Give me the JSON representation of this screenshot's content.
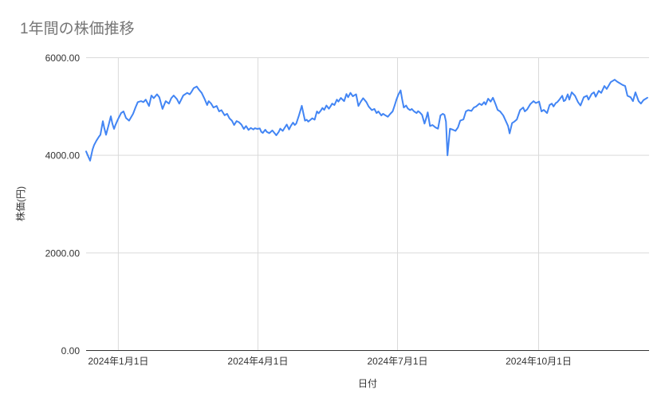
{
  "chart_data": {
    "type": "line",
    "title": "1年間の株価推移",
    "xlabel": "日付",
    "ylabel": "株価(円)",
    "ylim": [
      0,
      6000
    ],
    "xlim_days": [
      0,
      367
    ],
    "grid": true,
    "legend": "none",
    "line_color": "#4285f4",
    "title_color": "#757575",
    "axis_text_color": "#333333",
    "grid_color": "#dadada",
    "baseline_color": "#333333",
    "background_color": "#ffffff",
    "y_ticks": [
      {
        "value": 0,
        "label": "0.00"
      },
      {
        "value": 2000,
        "label": "2000.00"
      },
      {
        "value": 4000,
        "label": "4000.00"
      },
      {
        "value": 6000,
        "label": "6000.00"
      }
    ],
    "x_ticks": [
      {
        "day": 21,
        "label": "2024年1月1日"
      },
      {
        "day": 112,
        "label": "2024年4月1日"
      },
      {
        "day": 203,
        "label": "2024年7月1日"
      },
      {
        "day": 295,
        "label": "2024年10月1日"
      }
    ],
    "series": [
      {
        "name": "株価",
        "points": [
          [
            0,
            4080
          ],
          [
            1.6,
            3960
          ],
          [
            2.6,
            3890
          ],
          [
            4.2,
            4120
          ],
          [
            5.2,
            4210
          ],
          [
            6.7,
            4300
          ],
          [
            8.3,
            4380
          ],
          [
            9.3,
            4420
          ],
          [
            10.9,
            4700
          ],
          [
            11.9,
            4550
          ],
          [
            13,
            4420
          ],
          [
            14.5,
            4600
          ],
          [
            16.1,
            4800
          ],
          [
            17.1,
            4650
          ],
          [
            18.2,
            4540
          ],
          [
            19.2,
            4625
          ],
          [
            20.8,
            4740
          ],
          [
            22.8,
            4865
          ],
          [
            24.4,
            4900
          ],
          [
            26,
            4765
          ],
          [
            28,
            4710
          ],
          [
            30.6,
            4850
          ],
          [
            32.2,
            4980
          ],
          [
            33.7,
            5090
          ],
          [
            35.8,
            5110
          ],
          [
            37.4,
            5090
          ],
          [
            38.9,
            5140
          ],
          [
            41,
            5010
          ],
          [
            42.6,
            5225
          ],
          [
            44.1,
            5170
          ],
          [
            46.2,
            5250
          ],
          [
            47.7,
            5190
          ],
          [
            49.8,
            4950
          ],
          [
            51.9,
            5110
          ],
          [
            54,
            5060
          ],
          [
            55.5,
            5170
          ],
          [
            57.1,
            5225
          ],
          [
            59.2,
            5150
          ],
          [
            60.7,
            5060
          ],
          [
            63.3,
            5225
          ],
          [
            65.9,
            5280
          ],
          [
            67.5,
            5250
          ],
          [
            68.5,
            5290
          ],
          [
            70.1,
            5375
          ],
          [
            72.1,
            5410
          ],
          [
            73.7,
            5340
          ],
          [
            75.3,
            5280
          ],
          [
            77.3,
            5150
          ],
          [
            78.9,
            5030
          ],
          [
            79.9,
            5110
          ],
          [
            81.5,
            5060
          ],
          [
            83,
            4980
          ],
          [
            85.1,
            5010
          ],
          [
            86.7,
            4900
          ],
          [
            88.2,
            4925
          ],
          [
            90.3,
            4820
          ],
          [
            91.9,
            4850
          ],
          [
            93.4,
            4760
          ],
          [
            95,
            4710
          ],
          [
            96.5,
            4620
          ],
          [
            98.1,
            4700
          ],
          [
            99.6,
            4680
          ],
          [
            101.2,
            4630
          ],
          [
            102.8,
            4540
          ],
          [
            104.3,
            4600
          ],
          [
            105.9,
            4520
          ],
          [
            107.4,
            4560
          ],
          [
            109,
            4530
          ],
          [
            110,
            4555
          ],
          [
            111.6,
            4540
          ],
          [
            113.2,
            4550
          ],
          [
            114.2,
            4480
          ],
          [
            115.2,
            4460
          ],
          [
            116.8,
            4525
          ],
          [
            117.8,
            4480
          ],
          [
            119.4,
            4455
          ],
          [
            120.4,
            4480
          ],
          [
            121.4,
            4510
          ],
          [
            123,
            4450
          ],
          [
            124,
            4410
          ],
          [
            125.6,
            4480
          ],
          [
            126.6,
            4545
          ],
          [
            128.2,
            4500
          ],
          [
            129.2,
            4550
          ],
          [
            130.8,
            4630
          ],
          [
            132.3,
            4530
          ],
          [
            133.4,
            4600
          ],
          [
            134.9,
            4670
          ],
          [
            136,
            4620
          ],
          [
            137,
            4650
          ],
          [
            138.6,
            4800
          ],
          [
            140.6,
            5015
          ],
          [
            141.7,
            4850
          ],
          [
            142.7,
            4710
          ],
          [
            143.8,
            4730
          ],
          [
            144.8,
            4690
          ],
          [
            146.4,
            4730
          ],
          [
            147.4,
            4760
          ],
          [
            149,
            4730
          ],
          [
            150.5,
            4900
          ],
          [
            151.6,
            4860
          ],
          [
            153.1,
            4920
          ],
          [
            154.1,
            4970
          ],
          [
            155.2,
            4930
          ],
          [
            156.7,
            5020
          ],
          [
            158.3,
            4955
          ],
          [
            159.3,
            5000
          ],
          [
            160.4,
            5060
          ],
          [
            161.9,
            5030
          ],
          [
            163.5,
            5140
          ],
          [
            164.5,
            5100
          ],
          [
            166.1,
            5175
          ],
          [
            168.2,
            5110
          ],
          [
            169.7,
            5255
          ],
          [
            170.8,
            5190
          ],
          [
            172.3,
            5280
          ],
          [
            173.9,
            5210
          ],
          [
            174.9,
            5230
          ],
          [
            176,
            5250
          ],
          [
            177.5,
            5010
          ],
          [
            179.1,
            5100
          ],
          [
            180.6,
            5170
          ],
          [
            181.7,
            5130
          ],
          [
            182.7,
            5090
          ],
          [
            184.2,
            5000
          ],
          [
            186.3,
            4925
          ],
          [
            187.9,
            4950
          ],
          [
            189.4,
            4865
          ],
          [
            190.5,
            4900
          ],
          [
            192.5,
            4816
          ],
          [
            193.6,
            4850
          ],
          [
            195.1,
            4820
          ],
          [
            196.7,
            4790
          ],
          [
            198.3,
            4850
          ],
          [
            199.8,
            4900
          ],
          [
            200.9,
            5000
          ],
          [
            202.4,
            5150
          ],
          [
            203.5,
            5240
          ],
          [
            205,
            5330
          ],
          [
            206,
            5150
          ],
          [
            207.1,
            4980
          ],
          [
            208.6,
            5020
          ],
          [
            209.7,
            4960
          ],
          [
            211.2,
            4925
          ],
          [
            212.3,
            4950
          ],
          [
            213.8,
            4900
          ],
          [
            215.4,
            4865
          ],
          [
            216.4,
            4905
          ],
          [
            217.5,
            4880
          ],
          [
            219,
            4830
          ],
          [
            220.6,
            4650
          ],
          [
            221.6,
            4750
          ],
          [
            222.7,
            4880
          ],
          [
            224.2,
            4600
          ],
          [
            225.8,
            4620
          ],
          [
            227.8,
            4570
          ],
          [
            229.4,
            4545
          ],
          [
            231,
            4816
          ],
          [
            232.5,
            4850
          ],
          [
            233.6,
            4830
          ],
          [
            234.6,
            4690
          ],
          [
            235.6,
            4000
          ],
          [
            237.2,
            4545
          ],
          [
            238.7,
            4530
          ],
          [
            240.8,
            4500
          ],
          [
            242.4,
            4570
          ],
          [
            243.9,
            4710
          ],
          [
            246,
            4735
          ],
          [
            247.6,
            4900
          ],
          [
            249.1,
            4925
          ],
          [
            251.2,
            4910
          ],
          [
            252.8,
            4980
          ],
          [
            254.3,
            5000
          ],
          [
            256.4,
            5060
          ],
          [
            257.9,
            5030
          ],
          [
            259.5,
            5090
          ],
          [
            260.5,
            5040
          ],
          [
            262.1,
            5160
          ],
          [
            263.7,
            5100
          ],
          [
            265.2,
            5180
          ],
          [
            266.8,
            5060
          ],
          [
            268.3,
            4930
          ],
          [
            269.9,
            4900
          ],
          [
            272,
            4815
          ],
          [
            273.5,
            4710
          ],
          [
            275.1,
            4600
          ],
          [
            276.1,
            4450
          ],
          [
            277.7,
            4660
          ],
          [
            279.2,
            4690
          ],
          [
            280.8,
            4735
          ],
          [
            282.9,
            4925
          ],
          [
            284.9,
            4980
          ],
          [
            286,
            4900
          ],
          [
            287.5,
            4940
          ],
          [
            289.6,
            5050
          ],
          [
            291.7,
            5110
          ],
          [
            293.2,
            5070
          ],
          [
            295.3,
            5100
          ],
          [
            296.9,
            4900
          ],
          [
            298.4,
            4930
          ],
          [
            300.5,
            4865
          ],
          [
            302.1,
            5030
          ],
          [
            303.6,
            5060
          ],
          [
            304.7,
            5000
          ],
          [
            306.2,
            5070
          ],
          [
            307.2,
            5090
          ],
          [
            308.8,
            5150
          ],
          [
            310.4,
            5220
          ],
          [
            311.4,
            5110
          ],
          [
            312.4,
            5130
          ],
          [
            314,
            5250
          ],
          [
            315,
            5140
          ],
          [
            316.6,
            5290
          ],
          [
            318.7,
            5220
          ],
          [
            320.7,
            5090
          ],
          [
            322.3,
            5020
          ],
          [
            324.4,
            5190
          ],
          [
            326.5,
            5220
          ],
          [
            327.5,
            5140
          ],
          [
            329.6,
            5260
          ],
          [
            331.1,
            5290
          ],
          [
            332.2,
            5200
          ],
          [
            334.2,
            5320
          ],
          [
            335.8,
            5280
          ],
          [
            337.9,
            5420
          ],
          [
            339.4,
            5360
          ],
          [
            342,
            5500
          ],
          [
            343.6,
            5530
          ],
          [
            344.6,
            5550
          ],
          [
            346.2,
            5510
          ],
          [
            347.7,
            5480
          ],
          [
            349.8,
            5440
          ],
          [
            351.4,
            5420
          ],
          [
            352.9,
            5220
          ],
          [
            355,
            5190
          ],
          [
            356.5,
            5110
          ],
          [
            358.1,
            5290
          ],
          [
            360.2,
            5110
          ],
          [
            361.7,
            5060
          ],
          [
            363.3,
            5130
          ],
          [
            365.9,
            5180
          ]
        ]
      }
    ]
  }
}
